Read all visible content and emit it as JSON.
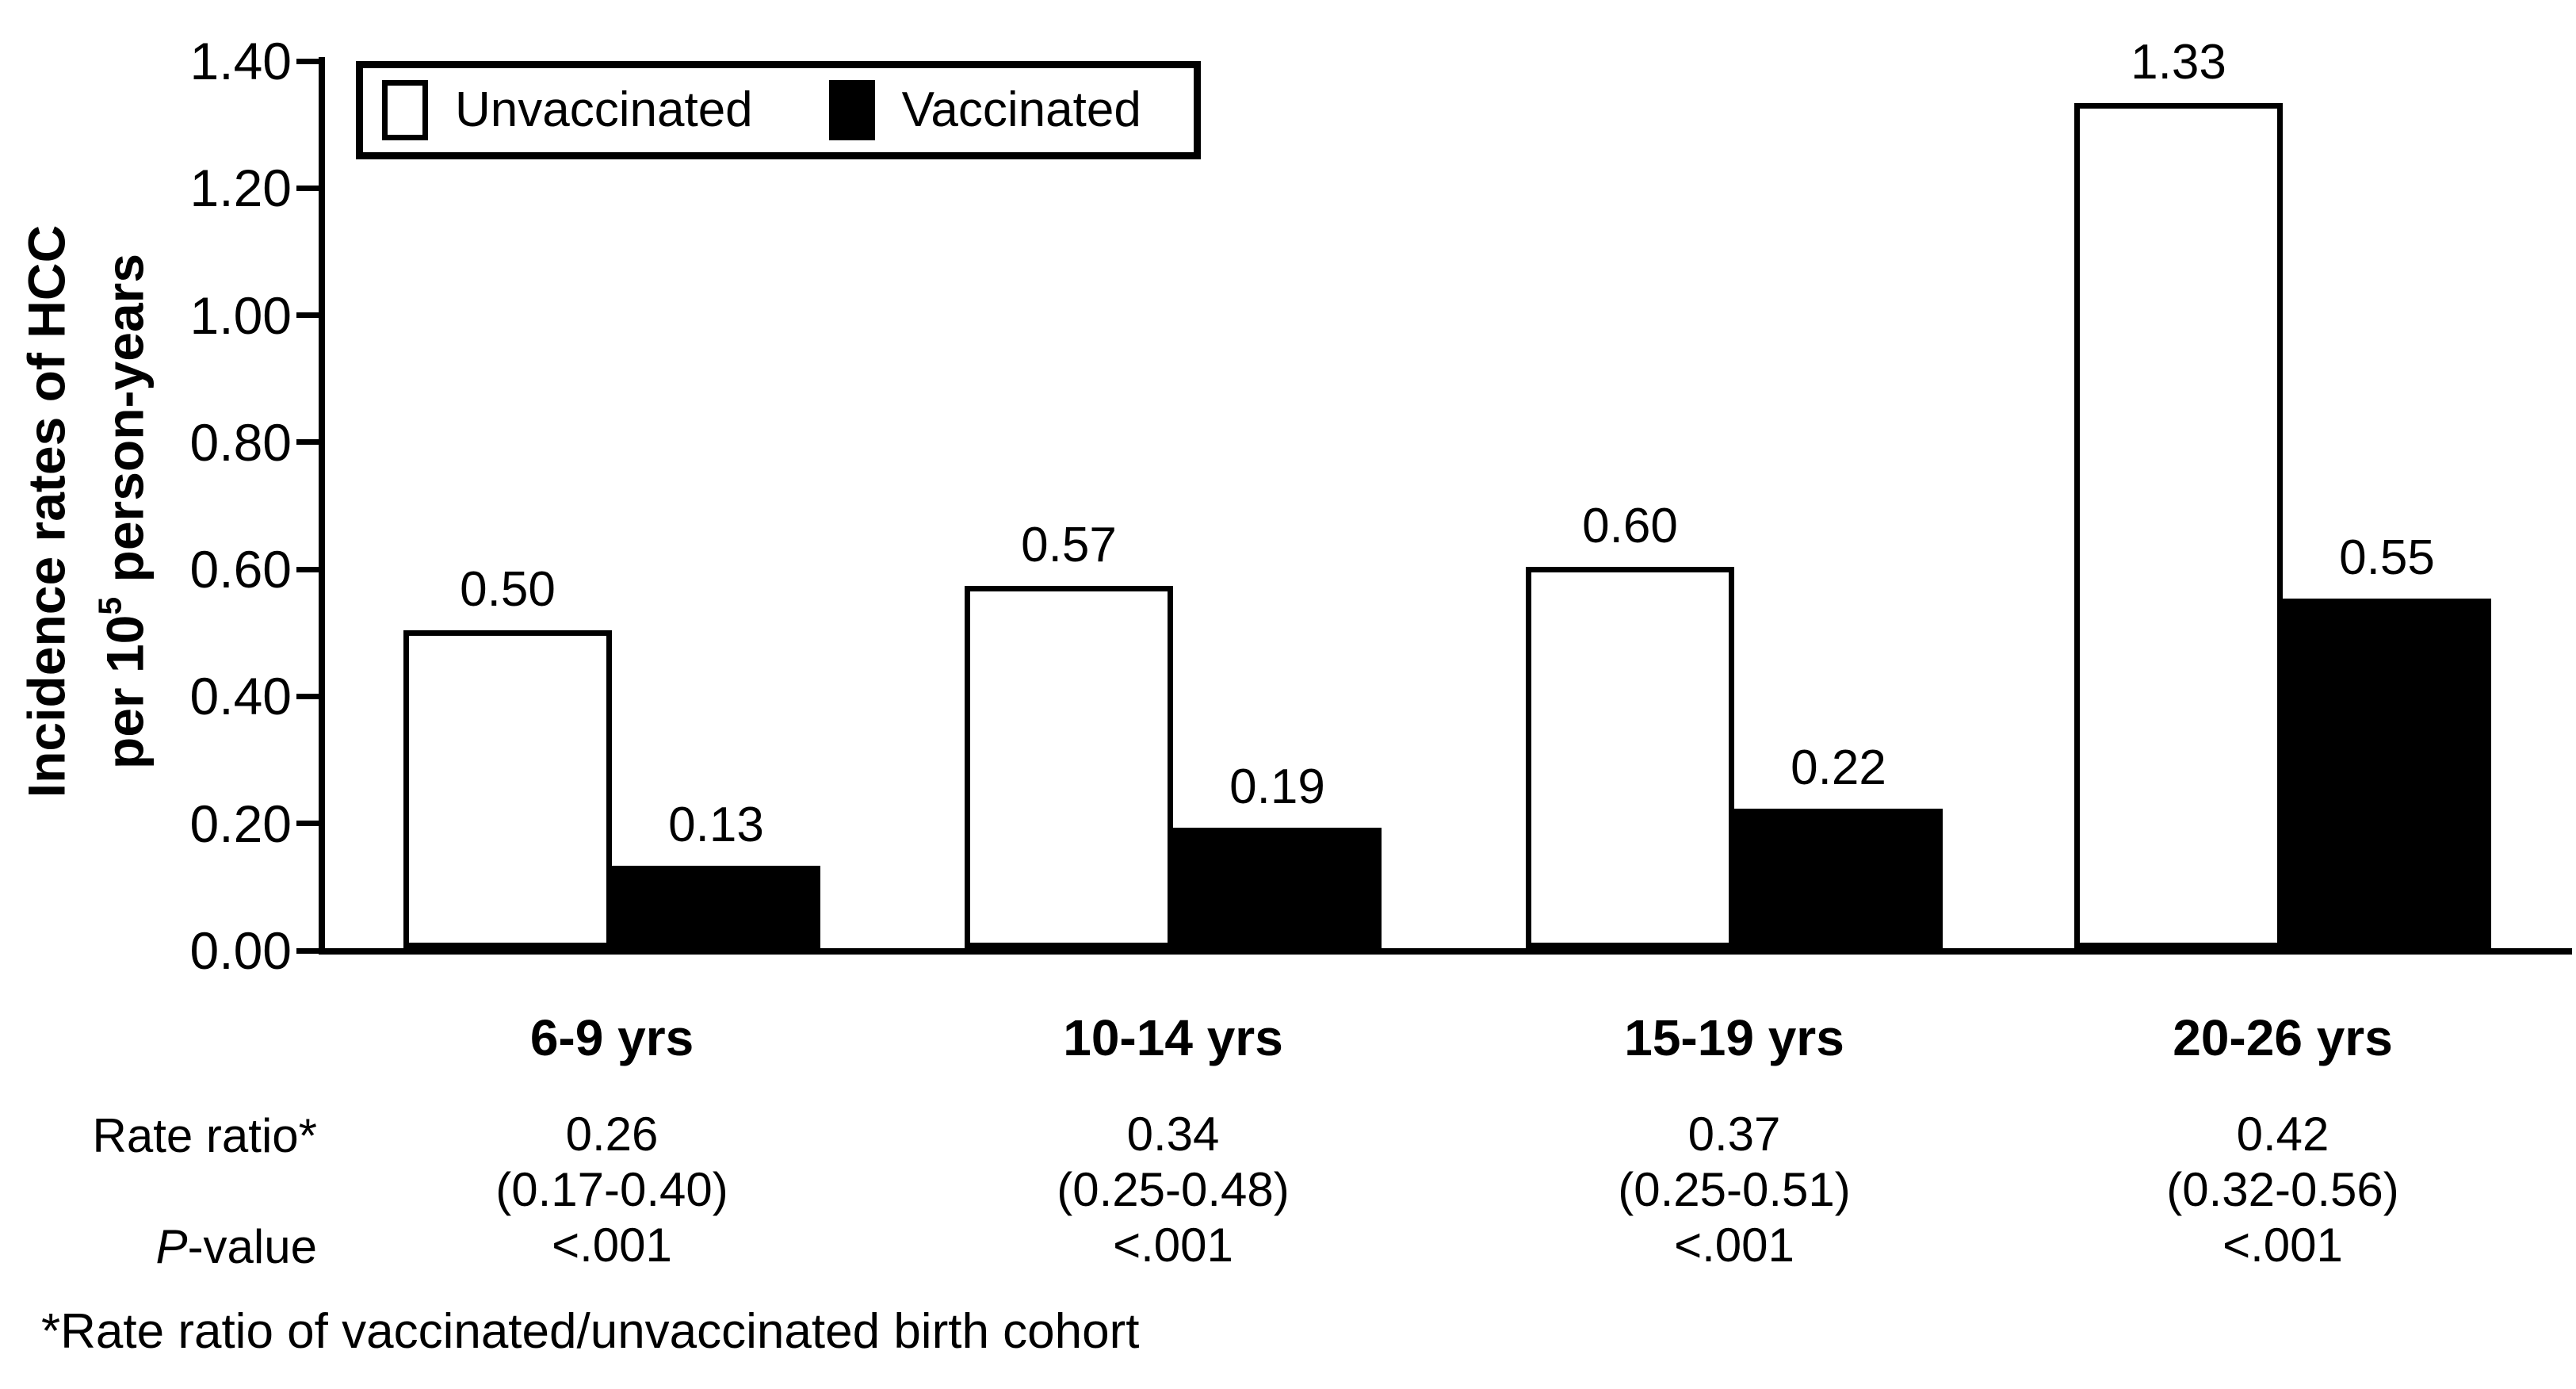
{
  "figure": {
    "background_color": "#ffffff",
    "foreground_color": "#000000",
    "ylabel_line1": "Incidence rates of HCC",
    "ylabel_line2_pre": "per 10",
    "ylabel_line2_sup": "5",
    "ylabel_line2_post": " person-years",
    "footnote": "*Rate ratio of vaccinated/unvaccinated birth cohort"
  },
  "legend": {
    "unvaccinated_label": "Unvaccinated",
    "vaccinated_label": "Vaccinated",
    "unvaccinated_fill": "#ffffff",
    "vaccinated_fill": "#000000"
  },
  "chart_data": {
    "type": "bar",
    "title": "",
    "categories": [
      "6-9 yrs",
      "10-14 yrs",
      "15-19 yrs",
      "20-26 yrs"
    ],
    "series": [
      {
        "name": "Unvaccinated",
        "fill": "#ffffff",
        "values": [
          0.5,
          0.57,
          0.6,
          1.33
        ],
        "labels": [
          "0.50",
          "0.57",
          "0.60",
          "1.33"
        ]
      },
      {
        "name": "Vaccinated",
        "fill": "#000000",
        "values": [
          0.13,
          0.19,
          0.22,
          0.55
        ],
        "labels": [
          "0.13",
          "0.19",
          "0.22",
          "0.55"
        ]
      }
    ],
    "xlabel": "",
    "ylabel": "Incidence rates of HCC per 10⁵ person-years",
    "ylim": [
      0,
      1.4
    ],
    "ytick_labels": [
      "0.00",
      "0.20",
      "0.40",
      "0.60",
      "0.80",
      "1.00",
      "1.20",
      "1.40"
    ],
    "ytick_values": [
      0.0,
      0.2,
      0.4,
      0.6,
      0.8,
      1.0,
      1.2,
      1.4
    ],
    "grid": false,
    "legend_position": "top-left",
    "bar_value_labels_shown": true
  },
  "table": {
    "rate_ratio_row_label": "Rate ratio*",
    "p_value_row_label_italic": "P",
    "p_value_row_label_rest": "-value",
    "columns": [
      {
        "category": "6-9 yrs",
        "rate_ratio": "0.26",
        "ci": "(0.17-0.40)",
        "p_value": "<.001"
      },
      {
        "category": "10-14 yrs",
        "rate_ratio": "0.34",
        "ci": "(0.25-0.48)",
        "p_value": "<.001"
      },
      {
        "category": "15-19 yrs",
        "rate_ratio": "0.37",
        "ci": "(0.25-0.51)",
        "p_value": "<.001"
      },
      {
        "category": "20-26 yrs",
        "rate_ratio": "0.42",
        "ci": "(0.32-0.56)",
        "p_value": "<.001"
      }
    ]
  }
}
